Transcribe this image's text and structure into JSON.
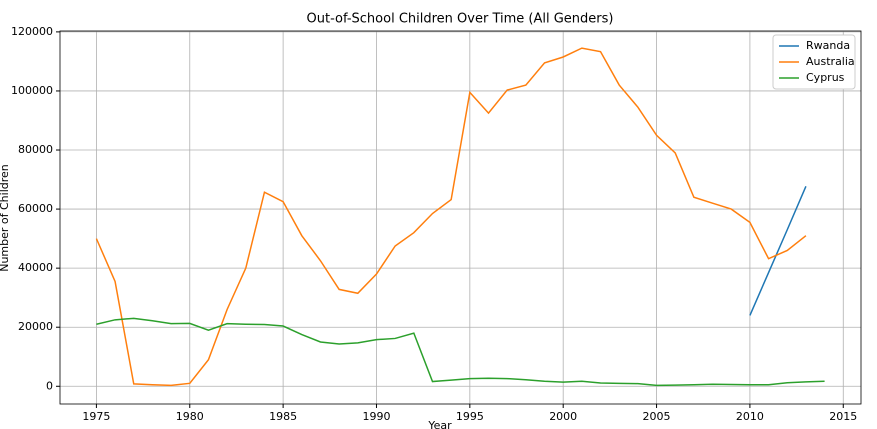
{
  "chart_data": {
    "type": "line",
    "title": "Out-of-School Children Over Time (All Genders)",
    "x_label": "Year",
    "y_label": "Number of Children",
    "x": [
      1975,
      1976,
      1977,
      1978,
      1979,
      1980,
      1981,
      1982,
      1983,
      1984,
      1985,
      1986,
      1987,
      1988,
      1989,
      1990,
      1991,
      1992,
      1993,
      1994,
      1995,
      1996,
      1997,
      1998,
      1999,
      2000,
      2001,
      2002,
      2003,
      2004,
      2005,
      2006,
      2007,
      2008,
      2009,
      2010,
      2011,
      2012,
      2013,
      2014
    ],
    "series": [
      {
        "name": "Rwanda",
        "color": "#1f77b4",
        "values": [
          null,
          null,
          null,
          null,
          null,
          null,
          null,
          null,
          null,
          null,
          null,
          null,
          null,
          null,
          null,
          null,
          null,
          null,
          null,
          null,
          null,
          null,
          null,
          null,
          null,
          null,
          null,
          null,
          null,
          null,
          null,
          null,
          null,
          null,
          null,
          24000,
          38500,
          53000,
          67700,
          null
        ]
      },
      {
        "name": "Australia",
        "color": "#ff7f0e",
        "values": [
          50000,
          35500,
          800,
          500,
          300,
          1000,
          9000,
          26000,
          40000,
          65700,
          62500,
          51000,
          42500,
          32800,
          31500,
          38000,
          47500,
          52000,
          58500,
          63200,
          99500,
          92500,
          100300,
          102000,
          109500,
          111500,
          114500,
          113300,
          102000,
          94500,
          85000,
          79000,
          64000,
          62000,
          60000,
          55500,
          43200,
          46000,
          51000,
          null
        ]
      },
      {
        "name": "Cyprus",
        "color": "#2ca02c",
        "values": [
          21000,
          22500,
          23000,
          22200,
          21200,
          21300,
          19000,
          21200,
          21000,
          20900,
          20400,
          17500,
          15000,
          14300,
          14700,
          15800,
          16200,
          18000,
          1600,
          2100,
          2600,
          2700,
          2600,
          2200,
          1700,
          1400,
          1700,
          1100,
          1000,
          900,
          300,
          400,
          500,
          700,
          600,
          500,
          500,
          1200,
          1500,
          1700
        ]
      }
    ],
    "xlim": [
      1973.05,
      2015.95
    ],
    "ylim": [
      -6000,
      120300
    ],
    "xticks": [
      1975,
      1980,
      1985,
      1990,
      1995,
      2000,
      2005,
      2010,
      2015
    ],
    "yticks": [
      0,
      20000,
      40000,
      60000,
      80000,
      100000,
      120000
    ],
    "grid": true,
    "legend": "upper right"
  }
}
